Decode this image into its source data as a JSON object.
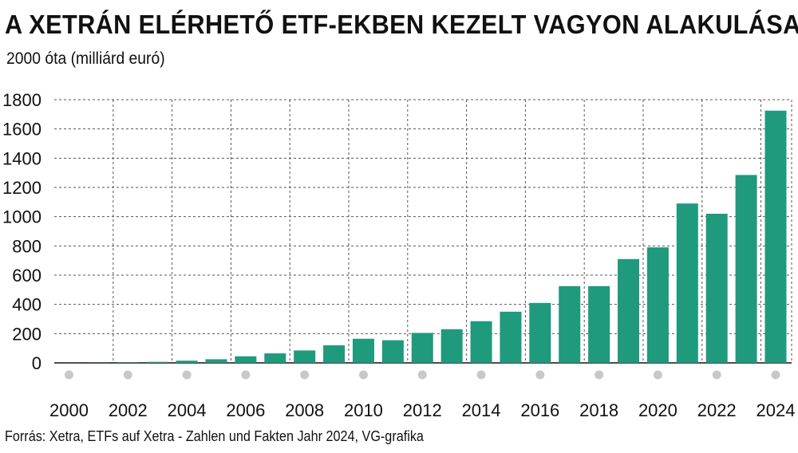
{
  "chart_data": {
    "type": "bar",
    "title": "A XETRÁN ELÉRHETŐ ETF-EKBEN KEZELT VAGYON ALAKULÁSA",
    "subtitle": "2000 óta (milliárd euró)",
    "source": "Forrás: Xetra, ETFs auf Xetra - Zahlen und Fakten Jahr 2024, VG-grafika",
    "xlabel": "",
    "ylabel": "",
    "ylim": [
      0,
      1800
    ],
    "yticks": [
      0,
      200,
      400,
      600,
      800,
      1000,
      1200,
      1400,
      1600,
      1800
    ],
    "grid": true,
    "bar_color": "#1f9a7c",
    "marker_color": "#c8c8c8",
    "categories": [
      "2000",
      "2001",
      "2002",
      "2003",
      "2004",
      "2005",
      "2006",
      "2007",
      "2008",
      "2009",
      "2010",
      "2011",
      "2012",
      "2013",
      "2014",
      "2015",
      "2016",
      "2017",
      "2018",
      "2019",
      "2020",
      "2021",
      "2022",
      "2023",
      "2024"
    ],
    "values": [
      0.5,
      1,
      2,
      7,
      15,
      25,
      45,
      65,
      85,
      120,
      165,
      155,
      205,
      230,
      285,
      350,
      410,
      525,
      525,
      710,
      790,
      1090,
      1020,
      1285,
      1725
    ],
    "xtick_labels": [
      "2000",
      "2002",
      "2004",
      "2006",
      "2008",
      "2010",
      "2012",
      "2014",
      "2016",
      "2018",
      "2020",
      "2022",
      "2024"
    ]
  }
}
